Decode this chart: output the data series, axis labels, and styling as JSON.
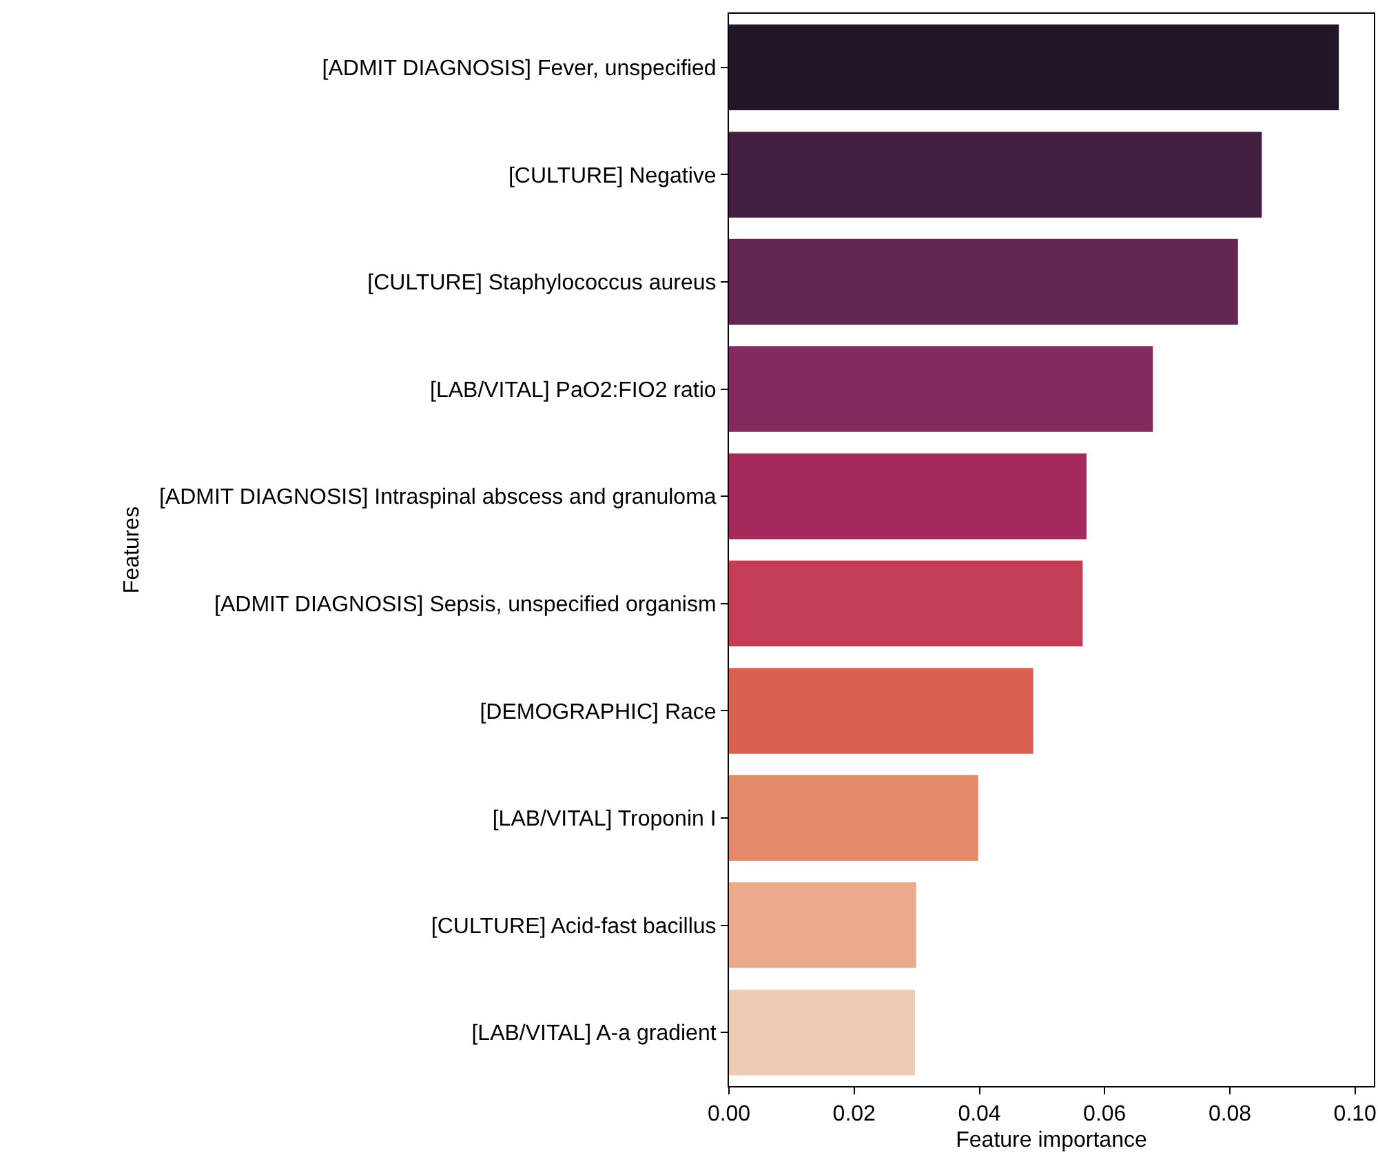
{
  "chart_data": {
    "type": "bar",
    "orientation": "horizontal",
    "xlabel": "Feature importance",
    "ylabel": "Features",
    "categories": [
      "[ADMIT DIAGNOSIS] Fever, unspecified",
      "[CULTURE] Negative",
      "[CULTURE] Staphylococcus aureus",
      "[LAB/VITAL] PaO2:FIO2 ratio",
      "[ADMIT DIAGNOSIS] Intraspinal abscess and granuloma",
      "[ADMIT DIAGNOSIS] Sepsis, unspecified organism",
      "[DEMOGRAPHIC] Race",
      "[LAB/VITAL] Troponin I",
      "[CULTURE] Acid-fast bacillus",
      "[LAB/VITAL] A-a gradient"
    ],
    "values": [
      0.0974,
      0.0851,
      0.0813,
      0.0677,
      0.0571,
      0.0565,
      0.0486,
      0.0398,
      0.0299,
      0.0297
    ],
    "colors": [
      "#231628",
      "#421f40",
      "#62264f",
      "#832b5c",
      "#a32a5a",
      "#c33e54",
      "#d8614f",
      "#e38a6b",
      "#e9ab8b",
      "#efcab5"
    ],
    "xlim": [
      0,
      0.103
    ],
    "xticks": [
      {
        "value": 0,
        "label": "0.00"
      },
      {
        "value": 0.02,
        "label": "0.02"
      },
      {
        "value": 0.04,
        "label": "0.04"
      },
      {
        "value": 0.06,
        "label": "0.06"
      },
      {
        "value": 0.08,
        "label": "0.08"
      },
      {
        "value": 0.1,
        "label": "0.10"
      }
    ],
    "grid": false
  }
}
